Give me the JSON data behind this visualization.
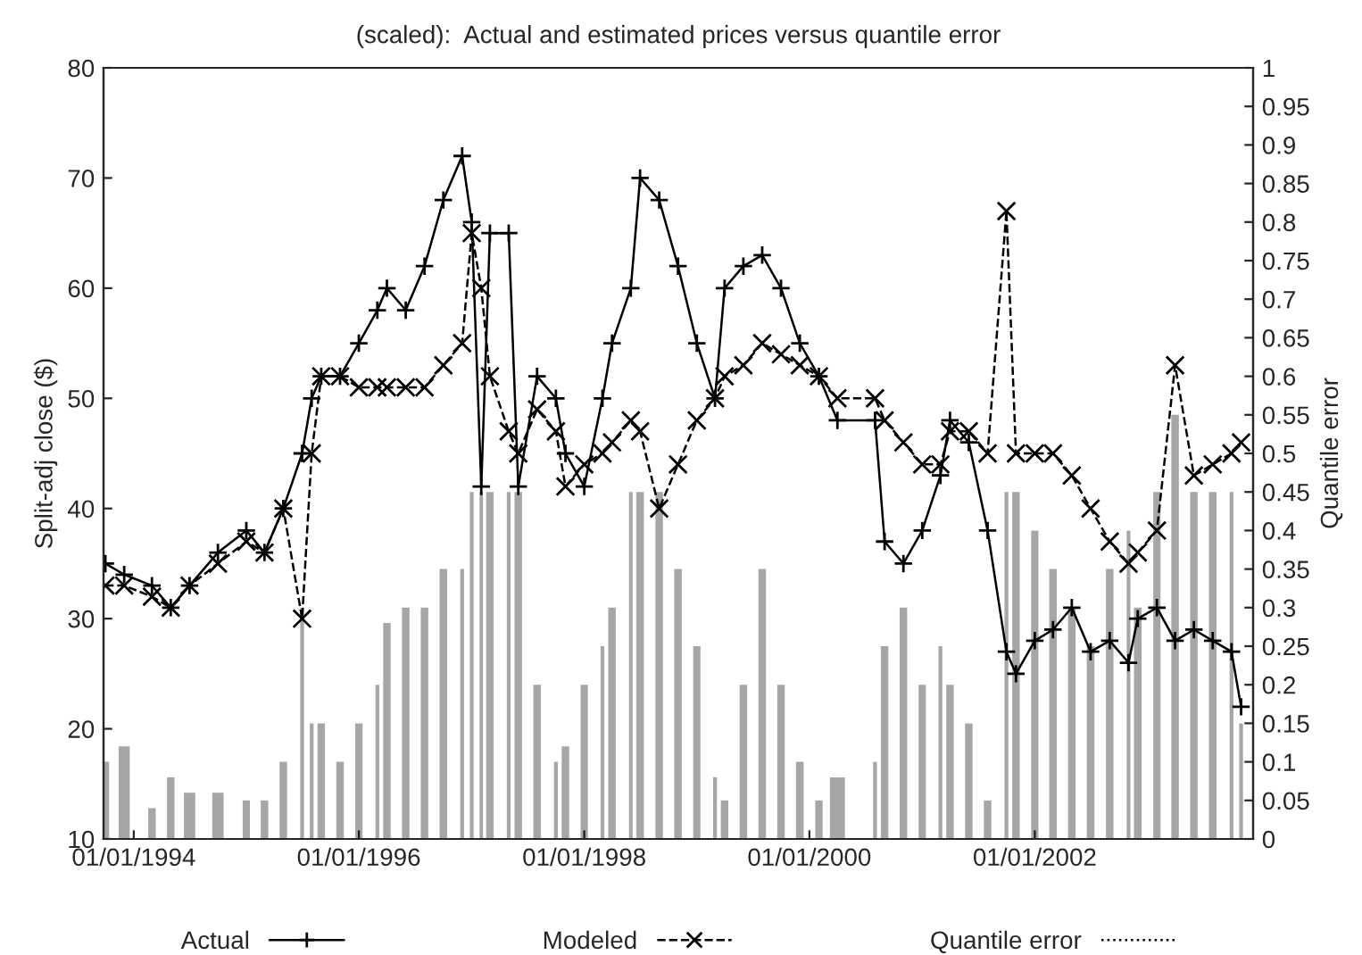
{
  "chart_data": {
    "type": "line",
    "title": "(scaled):  Actual and estimated prices versus quantile error",
    "ylabel": "Split-adj close ($)",
    "y2label": "Quantile error",
    "x": [
      "1993-10",
      "1993-12",
      "1994-03",
      "1994-05",
      "1994-07",
      "1994-10",
      "1995-01",
      "1995-03",
      "1995-05",
      "1995-07",
      "1995-08",
      "1995-09",
      "1995-11",
      "1996-01",
      "1996-03",
      "1996-04",
      "1996-06",
      "1996-08",
      "1996-10",
      "1996-12",
      "1997-01",
      "1997-02",
      "1997-03",
      "1997-05",
      "1997-06",
      "1997-08",
      "1997-10",
      "1997-11",
      "1998-01",
      "1998-03",
      "1998-04",
      "1998-06",
      "1998-07",
      "1998-09",
      "1998-11",
      "1999-01",
      "1999-03",
      "1999-04",
      "1999-06",
      "1999-08",
      "1999-10",
      "1999-12",
      "2000-02",
      "2000-04",
      "2000-08",
      "2000-09",
      "2000-11",
      "2001-01",
      "2001-03",
      "2001-04",
      "2001-06",
      "2001-08",
      "2001-10",
      "2001-11",
      "2002-01",
      "2002-03",
      "2002-05",
      "2002-07",
      "2002-09",
      "2002-11",
      "2002-12",
      "2003-02",
      "2003-04",
      "2003-06",
      "2003-08",
      "2003-10",
      "2003-11"
    ],
    "series": [
      {
        "name": "Actual",
        "color": "#000000",
        "marker": "cross",
        "line_style": "solid",
        "values": [
          35,
          34,
          33,
          31,
          33,
          36,
          38,
          36,
          40,
          45,
          50,
          52,
          52,
          55,
          58,
          60,
          58,
          62,
          68,
          72,
          66,
          42,
          65,
          65,
          42,
          52,
          50,
          45,
          42,
          50,
          55,
          60,
          70,
          68,
          62,
          55,
          50,
          60,
          62,
          63,
          60,
          55,
          52,
          48,
          48,
          37,
          35,
          38,
          43,
          48,
          46,
          38,
          27,
          25,
          28,
          29,
          31,
          27,
          28,
          26,
          30,
          31,
          28,
          29,
          28,
          27,
          22
        ]
      },
      {
        "name": "Modeled",
        "color": "#000000",
        "marker": "cross",
        "line_style": "dashed",
        "values": [
          33,
          33,
          32,
          31,
          33,
          35,
          37,
          36,
          40,
          30,
          45,
          52,
          52,
          51,
          51,
          51,
          51,
          51,
          53,
          55,
          65,
          60,
          52,
          47,
          45,
          49,
          47,
          42,
          44,
          45,
          46,
          48,
          47,
          40,
          44,
          48,
          50,
          52,
          53,
          55,
          54,
          53,
          52,
          50,
          50,
          48,
          46,
          44,
          44,
          47,
          47,
          45,
          67,
          45,
          45,
          45,
          43,
          40,
          37,
          35,
          36,
          38,
          53,
          43,
          44,
          45,
          46
        ]
      },
      {
        "name": "Quantile error",
        "type": "bar",
        "axis": "y2",
        "color": "#000000",
        "line_style": "dotted",
        "values": [
          0.1,
          0.12,
          0.04,
          0.08,
          0.06,
          0.06,
          0.05,
          0.05,
          0.1,
          0.3,
          0.15,
          0.15,
          0.1,
          0.15,
          0.2,
          0.28,
          0.3,
          0.3,
          0.35,
          0.35,
          0.45,
          0.45,
          0.45,
          0.45,
          0.45,
          0.2,
          0.1,
          0.12,
          0.2,
          0.25,
          0.3,
          0.45,
          0.45,
          0.45,
          0.35,
          0.25,
          0.08,
          0.05,
          0.2,
          0.35,
          0.2,
          0.1,
          0.05,
          0.08,
          0.1,
          0.25,
          0.3,
          0.2,
          0.25,
          0.2,
          0.15,
          0.05,
          0.45,
          0.45,
          0.4,
          0.35,
          0.3,
          0.25,
          0.35,
          0.4,
          0.3,
          0.45,
          0.55,
          0.45,
          0.45,
          0.45,
          0.15
        ]
      }
    ],
    "xlim": [
      "1993-09-25",
      "2003-12-10"
    ],
    "xticks": [
      {
        "value": "1994-01-01",
        "label": "01/01/1994"
      },
      {
        "value": "1996-01-01",
        "label": "01/01/1996"
      },
      {
        "value": "1998-01-01",
        "label": "01/01/1998"
      },
      {
        "value": "2000-01-01",
        "label": "01/01/2000"
      },
      {
        "value": "2002-01-01",
        "label": "01/01/2002"
      }
    ],
    "ylim": [
      10,
      80
    ],
    "yticks": [
      10,
      20,
      30,
      40,
      50,
      60,
      70,
      80
    ],
    "y2lim": [
      0,
      1
    ],
    "y2ticks": [
      0,
      0.05,
      0.1,
      0.15,
      0.2,
      0.25,
      0.3,
      0.35,
      0.4,
      0.45,
      0.5,
      0.55,
      0.6,
      0.65,
      0.7,
      0.75,
      0.8,
      0.85,
      0.9,
      0.95,
      1
    ],
    "grid": false,
    "legend": "bottom"
  }
}
